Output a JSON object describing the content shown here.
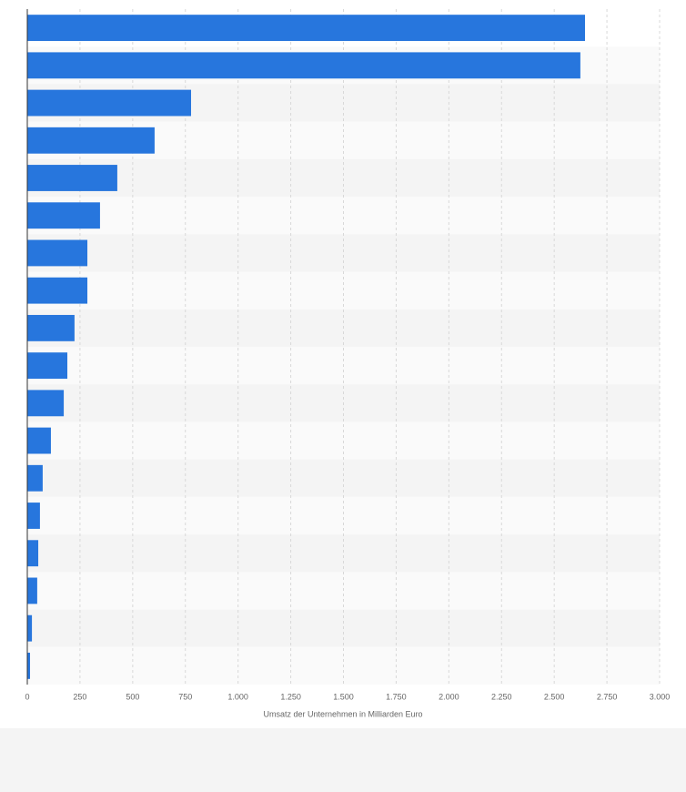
{
  "chart_data": {
    "type": "bar",
    "orientation": "horizontal",
    "x_axis_label": "Umsatz der Unternehmen in Milliarden Euro",
    "categories": [
      null,
      null,
      null,
      null,
      null,
      null,
      null,
      null,
      null,
      null,
      null,
      null,
      null,
      null,
      null,
      null,
      null,
      null
    ],
    "values": [
      2646,
      2624,
      777,
      604,
      427,
      345,
      285,
      285,
      224,
      190,
      173,
      112,
      73,
      60,
      52,
      47,
      22,
      13
    ],
    "color": "#2776dd",
    "xlim": [
      0,
      3000
    ],
    "xticks": [
      0,
      250,
      500,
      750,
      {
        "value": 1000,
        "label": "1.000"
      },
      {
        "value": 1250,
        "label": "1.250"
      },
      {
        "value": 1500,
        "label": "1.500"
      },
      {
        "value": 1750,
        "label": "1.750"
      },
      {
        "value": 2000,
        "label": "2.000"
      },
      {
        "value": 2250,
        "label": "2.250"
      },
      {
        "value": 2500,
        "label": "2.500"
      },
      {
        "value": 2750,
        "label": "2.750"
      },
      {
        "value": 3000,
        "label": "3.000"
      }
    ],
    "grid": true
  }
}
